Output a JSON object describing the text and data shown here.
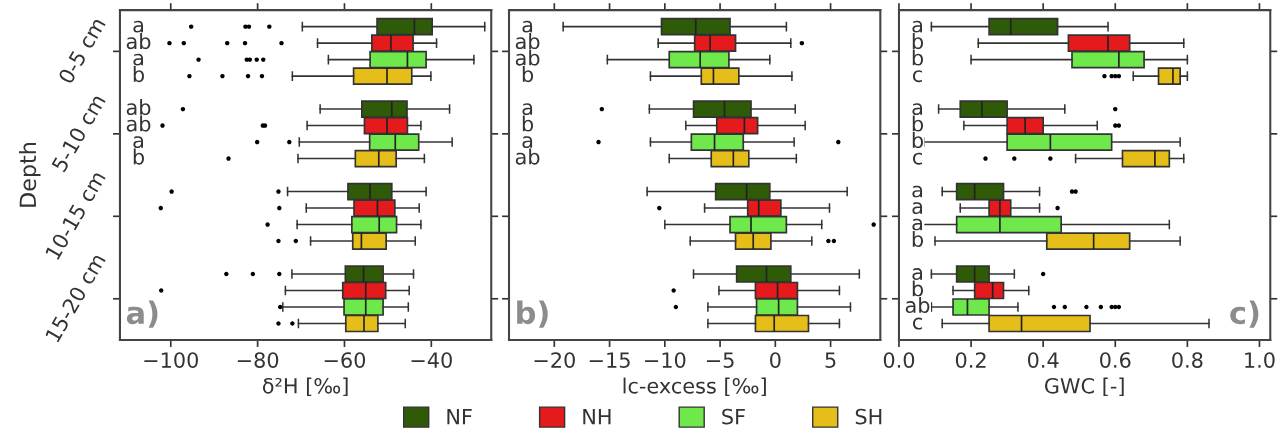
{
  "chart_data": [
    {
      "type": "box",
      "orientation": "horizontal",
      "categories": [
        "0-5 cm",
        "5-10 cm",
        "10-15 cm",
        "15-20 cm"
      ],
      "legend": "bottom",
      "ylabel": "Depth",
      "xlabel": "δ²H [‰]",
      "xlim": [
        -111.7,
        -26.2
      ],
      "xticks": [
        {
          "value": -100,
          "label": "−100"
        },
        {
          "value": -80,
          "label": "−80"
        },
        {
          "value": -60,
          "label": "−60"
        },
        {
          "value": -40,
          "label": "−40"
        }
      ],
      "annotations": [
        "a)"
      ],
      "series": [
        {
          "name": "NF",
          "color": "#2f5a08",
          "value_labels": [
            "a",
            "ab",
            null,
            null
          ],
          "boxes": [
            {
              "low": -69.7,
              "q1": -52.5,
              "median": -43.9,
              "q3": -39.8,
              "high": -27.7,
              "outliers": [
                -95.3,
                -82.8,
                -82.0,
                -77.3
              ]
            },
            {
              "low": -65.6,
              "q1": -56.0,
              "median": -49.1,
              "q3": -45.6,
              "high": -35.8,
              "outliers": [
                -97.2
              ]
            },
            {
              "low": -73.1,
              "q1": -59.2,
              "median": -54.1,
              "q3": -49.1,
              "high": -41.2,
              "outliers": [
                -99.8,
                -75.2
              ]
            },
            {
              "low": -72.1,
              "q1": -59.8,
              "median": -55.6,
              "q3": -51.1,
              "high": -44.1,
              "outliers": [
                -87.2,
                -81.1,
                -75.0
              ]
            }
          ]
        },
        {
          "name": "NH",
          "color": "#e41a1c",
          "value_labels": [
            "ab",
            "ab",
            null,
            null
          ],
          "boxes": [
            {
              "low": -66.2,
              "q1": -53.7,
              "median": -49.3,
              "q3": -44.2,
              "high": -38.8,
              "outliers": [
                -100.3,
                -97.0,
                -87.0,
                -82.9,
                -74.5
              ]
            },
            {
              "low": -68.6,
              "q1": -55.4,
              "median": -50.2,
              "q3": -45.5,
              "high": -42.4,
              "outliers": [
                -101.9,
                -78.8,
                -78.3
              ]
            },
            {
              "low": -68.8,
              "q1": -57.8,
              "median": -52.4,
              "q3": -48.4,
              "high": -42.8,
              "outliers": [
                -102.3,
                -75.0
              ]
            },
            {
              "low": -73.6,
              "q1": -60.4,
              "median": -55.1,
              "q3": -50.5,
              "high": -45.1,
              "outliers": [
                -102.2
              ]
            }
          ]
        },
        {
          "name": "SF",
          "color": "#6ee84a",
          "value_labels": [
            "a",
            "a",
            null,
            null
          ],
          "boxes": [
            {
              "low": -63.7,
              "q1": -54.1,
              "median": -45.5,
              "q3": -41.2,
              "high": -30.2,
              "outliers": [
                -93.6,
                -82.5,
                -81.8,
                -80.2,
                -78.7
              ]
            },
            {
              "low": -70.4,
              "q1": -54.2,
              "median": -48.3,
              "q3": -42.9,
              "high": -35.2,
              "outliers": [
                -80.1,
                -72.7
              ]
            },
            {
              "low": -70.9,
              "q1": -58.3,
              "median": -52.0,
              "q3": -48.0,
              "high": -42.4,
              "outliers": [
                -77.7
              ]
            },
            {
              "low": -74.2,
              "q1": -60.1,
              "median": -55.1,
              "q3": -51.1,
              "high": -45.3,
              "outliers": [
                -74.8
              ]
            }
          ]
        },
        {
          "name": "SH",
          "color": "#e6be1a",
          "value_labels": [
            "b",
            "b",
            null,
            null
          ],
          "boxes": [
            {
              "low": -72.0,
              "q1": -57.9,
              "median": -50.2,
              "q3": -44.5,
              "high": -40.1,
              "outliers": [
                -95.7,
                -88.1,
                -82.2,
                -79.0
              ]
            },
            {
              "low": -70.7,
              "q1": -57.5,
              "median": -52.1,
              "q3": -48.1,
              "high": -41.6,
              "outliers": [
                -86.7
              ]
            },
            {
              "low": -67.8,
              "q1": -58.1,
              "median": -56.1,
              "q3": -50.4,
              "high": -43.7,
              "outliers": [
                -75.2,
                -71.2
              ]
            },
            {
              "low": -70.6,
              "q1": -59.7,
              "median": -55.5,
              "q3": -52.3,
              "high": -46.0,
              "outliers": [
                -75.2,
                -72.0
              ]
            }
          ]
        }
      ]
    },
    {
      "type": "box",
      "orientation": "horizontal",
      "tick_labels": "x",
      "xlabel": "lc-excess [‰]",
      "xlim": [
        -24.1,
        9.5
      ],
      "xticks": [
        {
          "value": -20,
          "label": "−20"
        },
        {
          "value": -15,
          "label": "−15"
        },
        {
          "value": -10,
          "label": "−10"
        },
        {
          "value": -5,
          "label": "−5"
        },
        0,
        5
      ],
      "annotations": [
        "b)"
      ],
      "series": [
        {
          "color": "#2f5a08",
          "value_labels": [
            "a",
            "a",
            null,
            null
          ],
          "boxes": [
            {
              "low": -19.2,
              "q1": -10.3,
              "median": -7.2,
              "q3": -4.1,
              "high": 1.0
            },
            {
              "low": -11.4,
              "q1": -7.4,
              "median": -4.6,
              "q3": -2.2,
              "high": 1.8,
              "outliers": [
                -15.7
              ]
            },
            {
              "low": -11.6,
              "q1": -5.4,
              "median": -2.6,
              "q3": -0.5,
              "high": 6.5
            },
            {
              "low": -7.4,
              "q1": -3.5,
              "median": -0.8,
              "q3": 1.4,
              "high": 7.6
            }
          ]
        },
        {
          "color": "#e41a1c",
          "value_labels": [
            "ab",
            "b",
            null,
            null
          ],
          "boxes": [
            {
              "low": -10.6,
              "q1": -7.3,
              "median": -5.9,
              "q3": -3.6,
              "high": 1.4,
              "outliers": [
                2.4
              ]
            },
            {
              "low": -8.1,
              "q1": -5.3,
              "median": -2.8,
              "q3": -1.6,
              "high": 2.7
            },
            {
              "low": -6.4,
              "q1": -2.5,
              "median": -1.5,
              "q3": 0.5,
              "high": 4.9,
              "outliers": [
                -10.5
              ]
            },
            {
              "low": -5.1,
              "q1": -1.8,
              "median": 0.2,
              "q3": 2.0,
              "high": 5.8,
              "outliers": [
                -9.2
              ]
            }
          ]
        },
        {
          "color": "#6ee84a",
          "value_labels": [
            "ab",
            "a",
            null,
            null
          ],
          "boxes": [
            {
              "low": -15.2,
              "q1": -9.6,
              "median": -6.8,
              "q3": -4.2,
              "high": -0.5
            },
            {
              "low": -11.3,
              "q1": -7.6,
              "median": -5.5,
              "q3": -2.9,
              "high": 1.7,
              "outliers": [
                -16.0,
                5.7
              ]
            },
            {
              "low": -10.0,
              "q1": -4.1,
              "median": -2.2,
              "q3": 1.0,
              "high": 4.2,
              "outliers": [
                8.9
              ]
            },
            {
              "low": -6.1,
              "q1": -1.7,
              "median": 0.3,
              "q3": 2.0,
              "high": 6.8,
              "outliers": [
                -9.0
              ]
            }
          ]
        },
        {
          "color": "#e6be1a",
          "value_labels": [
            "b",
            "ab",
            null,
            null
          ],
          "boxes": [
            {
              "low": -11.3,
              "q1": -6.7,
              "median": -5.6,
              "q3": -3.3,
              "high": 1.5
            },
            {
              "low": -9.6,
              "q1": -5.8,
              "median": -3.8,
              "q3": -2.4,
              "high": 1.9
            },
            {
              "low": -7.7,
              "q1": -3.6,
              "median": -2.0,
              "q3": -0.4,
              "high": 3.3,
              "outliers": [
                4.8,
                5.3
              ]
            },
            {
              "low": -6.1,
              "q1": -1.8,
              "median": -0.1,
              "q3": 3.0,
              "high": 5.8
            }
          ]
        }
      ]
    },
    {
      "type": "box",
      "orientation": "horizontal",
      "tick_labels": "x",
      "xlabel": "GWC [-]",
      "xlim": [
        0,
        1.03
      ],
      "xticks": [
        {
          "value": 0,
          "label": "0.0"
        },
        {
          "value": 0.2,
          "label": "0.2"
        },
        {
          "value": 0.4,
          "label": "0.4"
        },
        {
          "value": 0.6,
          "label": "0.6"
        },
        {
          "value": 0.8,
          "label": "0.8"
        },
        {
          "value": 1,
          "label": "1.0"
        }
      ],
      "annotations": [
        "c)"
      ],
      "series": [
        {
          "color": "#2f5a08",
          "value_labels": [
            "a",
            "a",
            "a",
            "a"
          ],
          "boxes": [
            {
              "low": 0.09,
              "q1": 0.25,
              "median": 0.31,
              "q3": 0.44,
              "high": 0.58
            },
            {
              "low": 0.11,
              "q1": 0.17,
              "median": 0.23,
              "q3": 0.3,
              "high": 0.46,
              "outliers": [
                0.6
              ]
            },
            {
              "low": 0.12,
              "q1": 0.16,
              "median": 0.21,
              "q3": 0.29,
              "high": 0.39,
              "outliers": [
                0.48,
                0.49
              ]
            },
            {
              "low": 0.09,
              "q1": 0.16,
              "median": 0.21,
              "q3": 0.25,
              "high": 0.32,
              "outliers": [
                0.4
              ]
            }
          ]
        },
        {
          "color": "#e41a1c",
          "value_labels": [
            "b",
            "b",
            "a",
            "b"
          ],
          "boxes": [
            {
              "low": 0.22,
              "q1": 0.47,
              "median": 0.58,
              "q3": 0.64,
              "high": 0.79
            },
            {
              "low": 0.18,
              "q1": 0.3,
              "median": 0.35,
              "q3": 0.4,
              "high": 0.55,
              "outliers": [
                0.6,
                0.61
              ]
            },
            {
              "low": 0.17,
              "q1": 0.25,
              "median": 0.28,
              "q3": 0.31,
              "high": 0.39,
              "outliers": [
                0.44
              ]
            },
            {
              "low": 0.15,
              "q1": 0.21,
              "median": 0.26,
              "q3": 0.29,
              "high": 0.36
            }
          ]
        },
        {
          "color": "#6ee84a",
          "value_labels": [
            "b",
            "b",
            "a",
            "ab"
          ],
          "boxes": [
            {
              "low": 0.2,
              "q1": 0.48,
              "median": 0.61,
              "q3": 0.68,
              "high": 0.8
            },
            {
              "low": 0.07,
              "q1": 0.3,
              "median": 0.42,
              "q3": 0.59,
              "high": 0.78
            },
            {
              "low": 0.06,
              "q1": 0.16,
              "median": 0.28,
              "q3": 0.45,
              "high": 0.75
            },
            {
              "low": 0.09,
              "q1": 0.15,
              "median": 0.19,
              "q3": 0.25,
              "high": 0.33,
              "outliers": [
                0.43,
                0.46,
                0.52,
                0.56,
                0.59,
                0.6,
                0.61
              ]
            }
          ]
        },
        {
          "color": "#e6be1a",
          "value_labels": [
            "c",
            "c",
            "b",
            "c"
          ],
          "boxes": [
            {
              "low": 0.65,
              "q1": 0.72,
              "median": 0.76,
              "q3": 0.78,
              "high": 0.8,
              "outliers": [
                0.57,
                0.59,
                0.6,
                0.61
              ]
            },
            {
              "low": 0.49,
              "q1": 0.62,
              "median": 0.71,
              "q3": 0.75,
              "high": 0.79,
              "outliers": [
                0.24,
                0.32,
                0.42
              ]
            },
            {
              "low": 0.1,
              "q1": 0.41,
              "median": 0.54,
              "q3": 0.64,
              "high": 0.78
            },
            {
              "low": 0.12,
              "q1": 0.25,
              "median": 0.34,
              "q3": 0.53,
              "high": 0.86
            }
          ]
        }
      ]
    }
  ]
}
